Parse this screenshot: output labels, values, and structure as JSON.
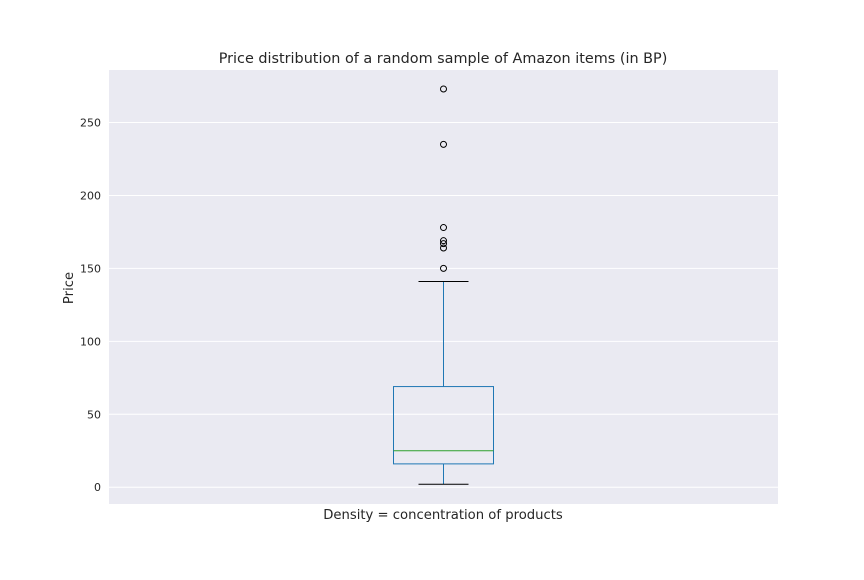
{
  "chart_data": {
    "type": "box",
    "title": "Price distribution of a random sample of Amazon items (in BP)",
    "xlabel": "Density = concentration of products",
    "ylabel": "Price",
    "ylim": [
      -11.5,
      286
    ],
    "yticks": [
      0,
      50,
      100,
      150,
      200,
      250
    ],
    "grid": true,
    "box": {
      "whisker_low": 2,
      "q1": 16,
      "median": 25,
      "q3": 69,
      "whisker_high": 141,
      "outliers": [
        150,
        164,
        167,
        169,
        178,
        235,
        273
      ]
    },
    "colors": {
      "background": "#eaeaf2",
      "grid": "#ffffff",
      "box": "#1f77b4",
      "median": "#2ca02c",
      "whisker_cap": "#000000",
      "outlier_edge": "#000000"
    }
  }
}
